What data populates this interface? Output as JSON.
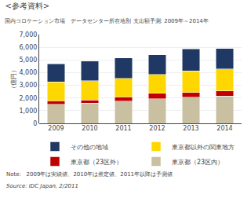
{
  "chart_data": {
    "type": "bar",
    "stacked": true,
    "title": "<参考資料>",
    "subtitle": "国内コロケーション市場　データセンター所在地別 支出額予測: 2009年～2014年",
    "categories": [
      "2009",
      "2010",
      "2011",
      "2012",
      "2013",
      "2014"
    ],
    "series": [
      {
        "name": "東京都（23区内）",
        "color": "#C8C0A0",
        "values": [
          1500,
          1600,
          1750,
          1950,
          2050,
          2150
        ]
      },
      {
        "name": "東京都（23区外）",
        "color": "#C00000",
        "values": [
          280,
          250,
          350,
          420,
          380,
          400
        ]
      },
      {
        "name": "東京都以外の関東地方",
        "color": "#FFD700",
        "values": [
          1500,
          1500,
          1450,
          1500,
          1700,
          1750
        ]
      },
      {
        "name": "その他の地域",
        "color": "#1F3864",
        "values": [
          1400,
          1550,
          1600,
          1550,
          1750,
          1600
        ]
      }
    ],
    "ylabel": "（億円）",
    "ylim": [
      0,
      7000
    ],
    "yticks": [
      0,
      {
        "value": 1000,
        "label": "1,000"
      },
      {
        "value": 2000,
        "label": "2,000"
      },
      {
        "value": 3000,
        "label": "3,000"
      },
      {
        "value": 4000,
        "label": "4,000"
      },
      {
        "value": 5000,
        "label": "5,000"
      },
      {
        "value": 6000,
        "label": "6,000"
      },
      {
        "value": 7000,
        "label": "7,000"
      }
    ],
    "grid": true,
    "legend": "bottom",
    "annotations": [
      "Note:   2009年は実績値、2010年は推定値、2011年以降は予測値",
      "Source: IDC Japan, 2/2011"
    ]
  }
}
